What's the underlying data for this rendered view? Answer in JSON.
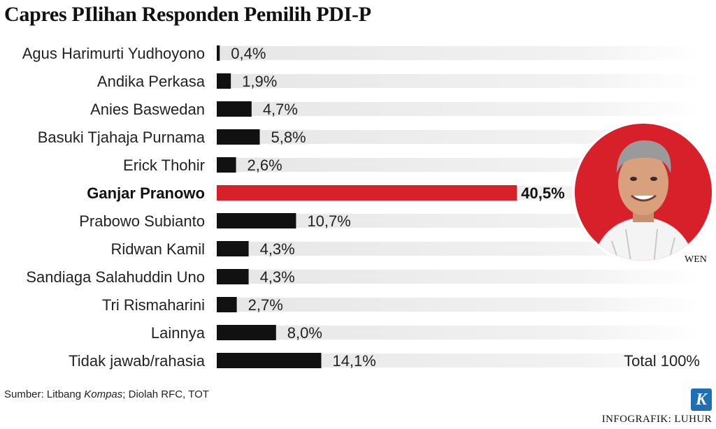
{
  "chart_data": {
    "type": "bar",
    "orientation": "horizontal",
    "title": "Capres PIlihan Responden Pemilih PDI-P",
    "categories": [
      "Agus Harimurti Yudhoyono",
      "Andika Perkasa",
      "Anies Baswedan",
      "Basuki Tjahaja Purnama",
      "Erick Thohir",
      "Ganjar Pranowo",
      "Prabowo Subianto",
      "Ridwan Kamil",
      "Sandiaga Salahuddin Uno",
      "Tri Rismaharini",
      "Lainnya",
      "Tidak jawab/rahasia"
    ],
    "values": [
      0.4,
      1.9,
      4.7,
      5.8,
      2.6,
      40.5,
      10.7,
      4.3,
      4.3,
      2.7,
      8.0,
      14.1
    ],
    "value_labels": [
      "0,4%",
      "1,9%",
      "4,7%",
      "5,8%",
      "2,6%",
      "40,5%",
      "10,7%",
      "4,3%",
      "4,3%",
      "2,7%",
      "8,0%",
      "14,1%"
    ],
    "highlight": "Ganjar Pranowo",
    "xlim": [
      0,
      100
    ],
    "total_label": "Total 100%",
    "colors": {
      "default": "#111111",
      "highlight": "#d7202a",
      "track": "#ebebeb"
    }
  },
  "photo": {
    "credit": "WEN",
    "accent": "#d7202a"
  },
  "footer": {
    "source_prefix": "Sumber: Litbang ",
    "source_italic": "Kompas",
    "source_suffix": "; Diolah RFC, TOT",
    "logo_letter": "K",
    "infographic_credit": "INFOGRAFIK: LUHUR"
  }
}
